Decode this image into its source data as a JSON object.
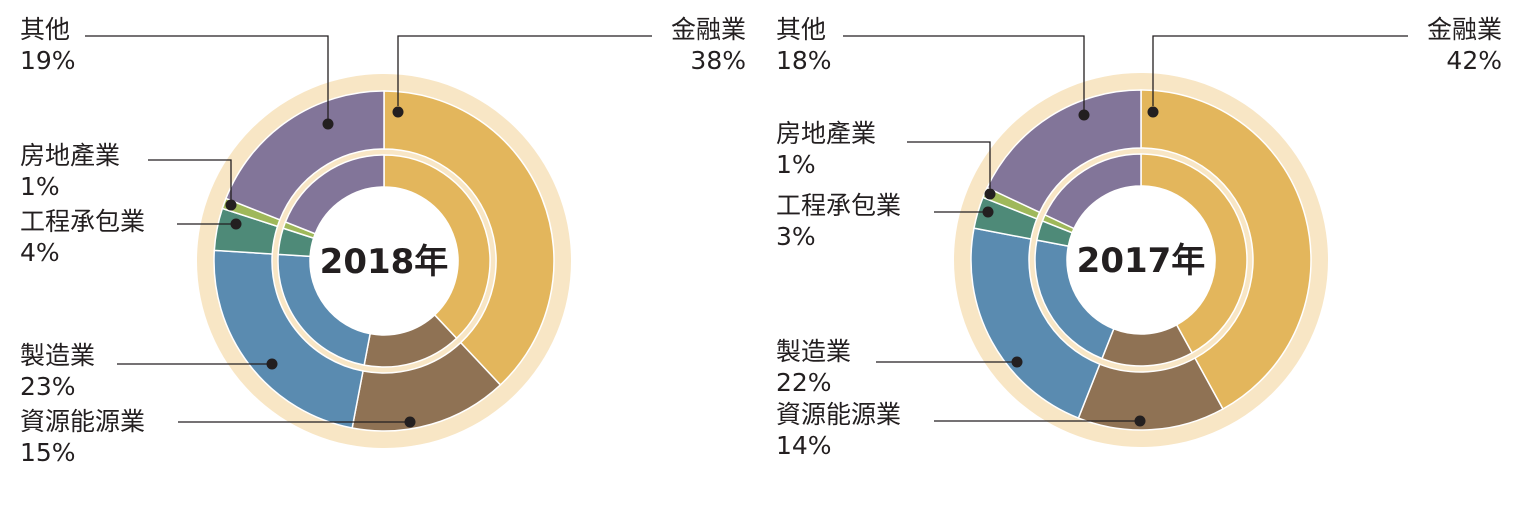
{
  "chart_data": [
    {
      "type": "pie",
      "style": "double-donut",
      "center_label": "2018年",
      "slices": [
        {
          "label": "金融業",
          "value_text": "38%",
          "value": 38,
          "color": "#e3b65c"
        },
        {
          "label": "資源能源業",
          "value_text": "15%",
          "value": 15,
          "color": "#8f7254"
        },
        {
          "label": "製造業",
          "value_text": "23%",
          "value": 23,
          "color": "#5a8bb0"
        },
        {
          "label": "工程承包業",
          "value_text": "4%",
          "value": 4,
          "color": "#4e8a78"
        },
        {
          "label": "房地產業",
          "value_text": "1%",
          "value": 1,
          "color": "#9fb85a"
        },
        {
          "label": "其他",
          "value_text": "19%",
          "value": 19,
          "color": "#827599"
        }
      ]
    },
    {
      "type": "pie",
      "style": "double-donut",
      "center_label": "2017年",
      "slices": [
        {
          "label": "金融業",
          "value_text": "42%",
          "value": 42,
          "color": "#e3b65c"
        },
        {
          "label": "資源能源業",
          "value_text": "14%",
          "value": 14,
          "color": "#8f7254"
        },
        {
          "label": "製造業",
          "value_text": "22%",
          "value": 22,
          "color": "#5a8bb0"
        },
        {
          "label": "工程承包業",
          "value_text": "3%",
          "value": 3,
          "color": "#4e8a78"
        },
        {
          "label": "房地產業",
          "value_text": "1%",
          "value": 1,
          "color": "#9fb85a"
        },
        {
          "label": "其他",
          "value_text": "18%",
          "value": 18,
          "color": "#827599"
        }
      ]
    }
  ],
  "colors": {
    "halo": "#f8e6c5",
    "separator": "#ffffff",
    "text": "#231f20"
  }
}
